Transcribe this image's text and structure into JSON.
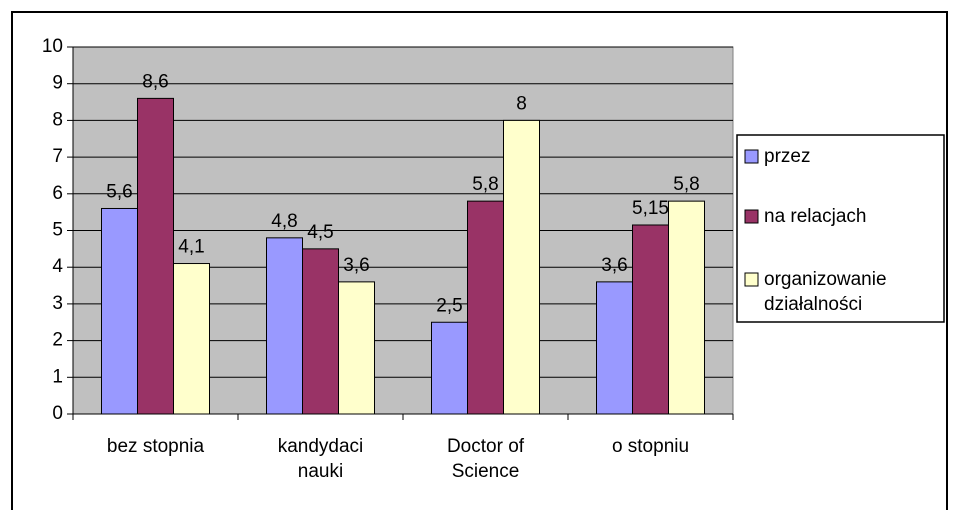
{
  "chart_data": {
    "type": "bar",
    "categories": [
      "bez stopnia",
      "kandydaci\nnauki",
      "Doctor of\nScience",
      "o stopniu"
    ],
    "series": [
      {
        "name": "przez",
        "color": "#9999ff",
        "values": [
          5.6,
          4.8,
          2.5,
          3.6
        ],
        "value_labels": [
          "5,6",
          "4,8",
          "2,5",
          "3,6"
        ]
      },
      {
        "name": "na relacjach",
        "color": "#993366",
        "values": [
          8.6,
          4.5,
          5.8,
          5.15
        ],
        "value_labels": [
          "8,6",
          "4,5",
          "5,8",
          "5,15"
        ]
      },
      {
        "name": "organizowanie\ndziałalności",
        "color": "#ffffcc",
        "values": [
          4.1,
          3.6,
          8,
          5.8
        ],
        "value_labels": [
          "4,1",
          "3,6",
          "8",
          "5,8"
        ]
      }
    ],
    "ylim": [
      0,
      10
    ],
    "yticks": [
      0,
      1,
      2,
      3,
      4,
      5,
      6,
      7,
      8,
      9,
      10
    ],
    "grid": true,
    "legend": "right"
  }
}
